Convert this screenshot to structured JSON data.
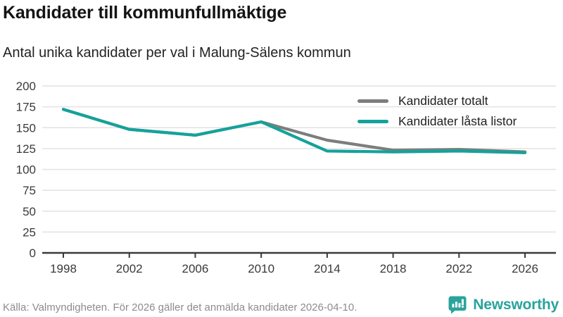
{
  "header": {
    "title": "Kandidater till kommunfullmäktige",
    "subtitle": "Antal unika kandidater per val i Malung-Sälens kommun"
  },
  "chart_data": {
    "type": "line",
    "x": [
      1998,
      2002,
      2006,
      2010,
      2014,
      2018,
      2022,
      2026
    ],
    "xticks": [
      "1998",
      "2002",
      "2006",
      "2010",
      "2014",
      "2018",
      "2022",
      "2026"
    ],
    "yticks": [
      0,
      25,
      50,
      75,
      100,
      125,
      150,
      175,
      200
    ],
    "ylim": [
      0,
      200
    ],
    "grid": true,
    "legend_position": "top-right-inside",
    "series": [
      {
        "name": "Kandidater totalt",
        "color": "#7d7d7d",
        "values": [
          172,
          148,
          141,
          157,
          135,
          123,
          124,
          121
        ]
      },
      {
        "name": "Kandidater låsta listor",
        "color": "#14a29b",
        "values": [
          172,
          148,
          141,
          157,
          122,
          121,
          122,
          120
        ]
      }
    ],
    "title": "Kandidater till kommunfullmäktige",
    "xlabel": "",
    "ylabel": ""
  },
  "colors": {
    "accent_teal": "#14a29b",
    "series_gray": "#7d7d7d",
    "gridline": "#e2e2e2",
    "axis": "#3a3a3a",
    "brand_teal": "#2aa39b"
  },
  "footer": {
    "source": "Källa: Valmyndigheten. För 2026 gäller det anmälda kandidater 2026-04-10.",
    "brand": "Newsworthy",
    "logo_icon": "bar-chart-speech-bubble-icon"
  }
}
